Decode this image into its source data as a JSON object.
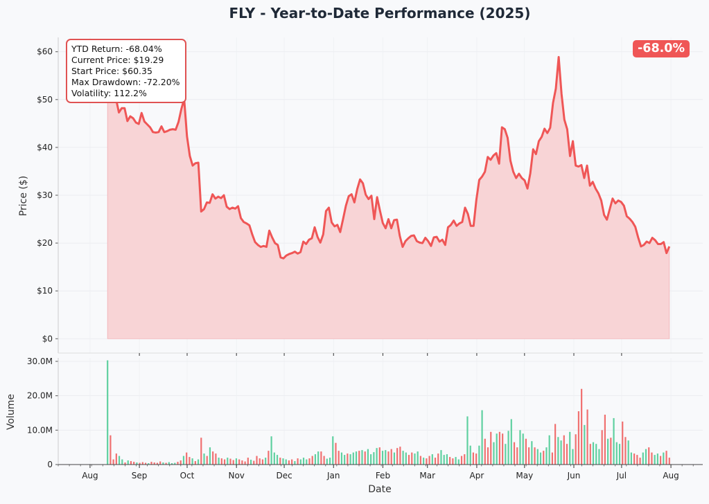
{
  "chart_data": [
    {
      "type": "area",
      "title": "FLY - Year-to-Date Performance (2025)",
      "ylabel": "Price ($)",
      "ylim": [
        -3,
        63
      ],
      "y_ticks": [
        0,
        10,
        20,
        30,
        40,
        50,
        60
      ],
      "y_tick_labels": [
        "$0",
        "$10",
        "$20",
        "$30",
        "$40",
        "$50",
        "$60"
      ],
      "grid": true,
      "line_color": "#ef5656",
      "fill_color": "#f8d4d6",
      "series": [
        {
          "x_start": "2024-08-12",
          "x_end": "2025-07-31",
          "values": [
            52.3,
            52.4,
            51.9,
            50.1,
            47.3,
            48.2,
            48.2,
            45.5,
            46.5,
            46.1,
            45.2,
            44.9,
            47.2,
            45.4,
            44.8,
            44.2,
            43.2,
            43.1,
            43.2,
            44.4,
            43.2,
            43.4,
            43.7,
            43.8,
            43.7,
            45.3,
            48.0,
            50.1,
            42.3,
            38.2,
            36.2,
            36.7,
            36.8,
            26.6,
            27.1,
            28.5,
            28.4,
            30.2,
            29.3,
            29.7,
            29.4,
            30.0,
            27.6,
            27.1,
            27.4,
            27.2,
            27.7,
            25.2,
            24.4,
            24.1,
            23.7,
            21.8,
            20.2,
            19.6,
            19.2,
            19.4,
            19.2,
            22.6,
            21.2,
            20.0,
            19.6,
            17.0,
            16.8,
            17.4,
            17.7,
            17.9,
            18.2,
            17.8,
            18.1,
            20.3,
            19.8,
            20.7,
            21.0,
            23.3,
            21.3,
            20.1,
            21.8,
            26.7,
            27.4,
            24.3,
            23.5,
            23.8,
            22.3,
            25.0,
            27.8,
            29.8,
            30.2,
            28.5,
            31.3,
            33.3,
            32.5,
            30.1,
            29.2,
            29.9,
            25.0,
            29.6,
            26.8,
            24.2,
            23.1,
            25.0,
            23.1,
            24.8,
            24.9,
            21.5,
            19.2,
            20.4,
            21.0,
            21.5,
            21.6,
            20.4,
            20.1,
            20.0,
            21.1,
            20.4,
            19.4,
            21.2,
            21.3,
            20.3,
            20.7,
            19.6,
            23.3,
            23.8,
            24.7,
            23.6,
            24.1,
            24.4,
            27.4,
            26.1,
            23.6,
            23.6,
            29.1,
            33.2,
            33.9,
            34.9,
            38.0,
            37.4,
            38.3,
            38.8,
            36.6,
            44.2,
            43.8,
            42.0,
            37.2,
            34.9,
            33.6,
            34.5,
            33.6,
            33.1,
            31.4,
            34.6,
            39.6,
            38.6,
            41.3,
            42.2,
            43.9,
            43.0,
            44.1,
            49.3,
            52.3,
            58.9,
            51.2,
            45.8,
            43.8,
            38.2,
            41.3,
            36.2,
            36.0,
            36.3,
            33.6,
            36.2,
            32.0,
            32.8,
            31.4,
            30.4,
            28.9,
            25.9,
            24.9,
            27.1,
            29.3,
            28.3,
            28.9,
            28.6,
            27.8,
            25.6,
            25.1,
            24.4,
            23.4,
            21.2,
            19.3,
            19.6,
            20.3,
            20.0,
            21.1,
            20.6,
            19.8,
            19.8,
            20.2,
            17.9,
            19.29
          ]
        }
      ],
      "stats": [
        "YTD Return: -68.04%",
        "Current Price: $19.29",
        "Start Price: $60.35",
        "Max Drawdown: -72.20%",
        "Volatility: 112.2%"
      ],
      "return_badge": "-68.0%"
    },
    {
      "type": "bar",
      "xlabel": "Date",
      "ylabel": "Volume",
      "ylim": [
        0,
        31
      ],
      "y_unit": "M",
      "y_ticks": [
        0,
        10,
        20,
        30
      ],
      "y_tick_labels": [
        "0",
        "10.0M",
        "20.0M",
        "30.0M"
      ],
      "x_ticks": [
        "2024-08-01",
        "2024-09-01",
        "2024-10-01",
        "2024-11-01",
        "2024-12-01",
        "2025-01-01",
        "2025-02-01",
        "2025-03-01",
        "2025-04-01",
        "2025-05-01",
        "2025-06-01",
        "2025-07-01",
        "2025-08-01"
      ],
      "x_tick_labels": [
        "Aug",
        "Sep",
        "Oct",
        "Nov",
        "Dec",
        "Jan",
        "Feb",
        "Mar",
        "Apr",
        "May",
        "Jun",
        "Jul",
        "Aug"
      ],
      "up_color": "#5fd0a0",
      "down_color": "#f07070",
      "volumes": [
        30.3,
        8.5,
        1.5,
        3.2,
        2.5,
        1.5,
        0.6,
        1.2,
        1.0,
        0.8,
        0.6,
        0.5,
        0.7,
        0.5,
        0.4,
        0.8,
        0.6,
        0.5,
        0.9,
        0.6,
        0.5,
        0.7,
        0.4,
        0.5,
        0.8,
        1.2,
        2.5,
        3.5,
        2.2,
        1.8,
        1.0,
        1.5,
        7.8,
        3.2,
        2.5,
        5.0,
        3.8,
        3.2,
        2.0,
        1.8,
        1.5,
        2.0,
        1.7,
        1.3,
        1.8,
        1.5,
        1.2,
        0.9,
        2.0,
        1.4,
        1.1,
        2.5,
        1.8,
        1.5,
        2.0,
        4.0,
        8.2,
        3.5,
        2.8,
        2.0,
        1.8,
        1.5,
        1.2,
        1.5,
        1.0,
        1.8,
        1.5,
        2.0,
        1.5,
        1.8,
        2.5,
        3.0,
        3.8,
        3.8,
        2.5,
        1.7,
        2.0,
        8.2,
        6.3,
        4.0,
        3.5,
        2.8,
        3.2,
        3.0,
        3.5,
        3.8,
        4.0,
        4.2,
        3.8,
        4.5,
        3.0,
        3.6,
        4.8,
        5.0,
        4.0,
        4.2,
        3.8,
        4.5,
        3.5,
        4.8,
        5.2,
        4.0,
        3.5,
        2.8,
        3.5,
        3.2,
        3.8,
        2.5,
        2.0,
        1.8,
        2.5,
        3.0,
        2.0,
        3.2,
        4.2,
        2.8,
        3.0,
        2.2,
        1.8,
        2.2,
        1.5,
        2.5,
        3.0,
        14.0,
        5.5,
        3.5,
        3.2,
        5.5,
        15.8,
        7.5,
        5.0,
        9.5,
        6.5,
        9.0,
        9.5,
        9.0,
        6.0,
        9.8,
        13.2,
        6.5,
        5.0,
        10.0,
        9.0,
        7.5,
        5.0,
        6.8,
        5.0,
        4.5,
        3.5,
        4.0,
        5.0,
        8.5,
        3.5,
        11.8,
        8.0,
        7.0,
        8.5,
        6.0,
        9.5,
        4.5,
        8.8,
        15.5,
        22.0,
        11.5,
        16.0,
        6.0,
        6.5,
        6.0,
        4.5,
        10.0,
        14.5,
        7.5,
        7.8,
        13.5,
        6.5,
        6.0,
        12.5,
        8.0,
        7.0,
        3.5,
        3.2,
        2.8,
        2.0,
        3.5,
        4.5,
        5.0,
        3.5,
        2.8,
        3.2,
        2.5,
        3.5,
        4.0,
        2.0
      ],
      "direction": "uddduududdudddudddduduuudduddududududduddudduddddudddduduuuduudduduuudduudduuudduuduuududuuuuduuddudduudduududdudduuudduudduudduuddduudduuudduudduduuduudduudduudddudduuudduduuudduuddduudduududduudduudduuddudud"
    }
  ]
}
